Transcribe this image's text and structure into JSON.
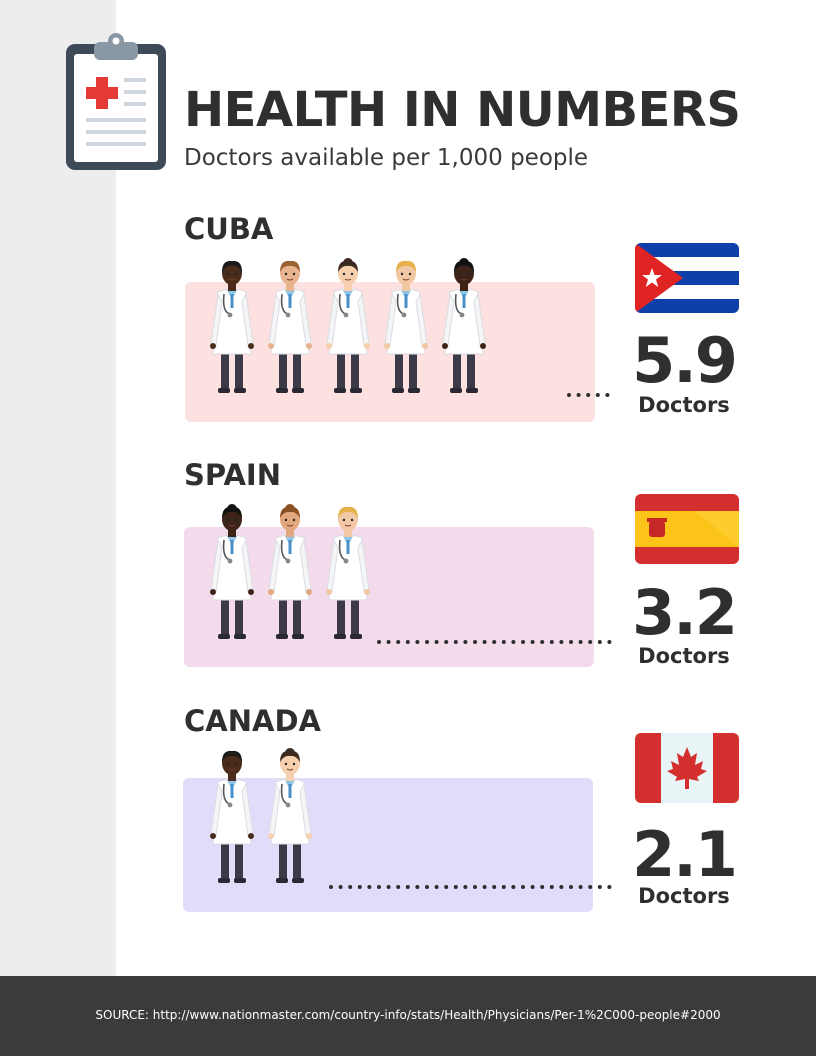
{
  "header": {
    "title": "HEALTH IN NUMBERS",
    "subtitle": "Doctors available per 1,000 people",
    "icon": "medical-clipboard-icon"
  },
  "chart_data": {
    "type": "bar",
    "title": "HEALTH IN NUMBERS",
    "subtitle": "Doctors available per 1,000 people",
    "categories": [
      "CUBA",
      "SPAIN",
      "CANADA"
    ],
    "values": [
      5.9,
      3.2,
      2.1
    ],
    "unit": "Doctors",
    "value_labels": [
      "5.9",
      "3.2",
      "2.1"
    ]
  },
  "countries": [
    {
      "name": "CUBA",
      "value_label": "5.9",
      "unit": "Doctors",
      "flag": "cuba-flag-icon",
      "panel_color": "#fde0e0"
    },
    {
      "name": "SPAIN",
      "value_label": "3.2",
      "unit": "Doctors",
      "flag": "spain-flag-icon",
      "panel_color": "#f4dbec"
    },
    {
      "name": "CANADA",
      "value_label": "2.1",
      "unit": "Doctors",
      "flag": "canada-flag-icon",
      "panel_color": "#e2dcfb"
    }
  ],
  "footer": {
    "source": "SOURCE: http://www.nationmaster.com/country-info/stats/Health/Physicians/Per-1%2C000-people#2000"
  },
  "colors": {
    "text": "#2f2f2f",
    "footer": "#3b3b3b",
    "side_strip": "#ededed"
  }
}
